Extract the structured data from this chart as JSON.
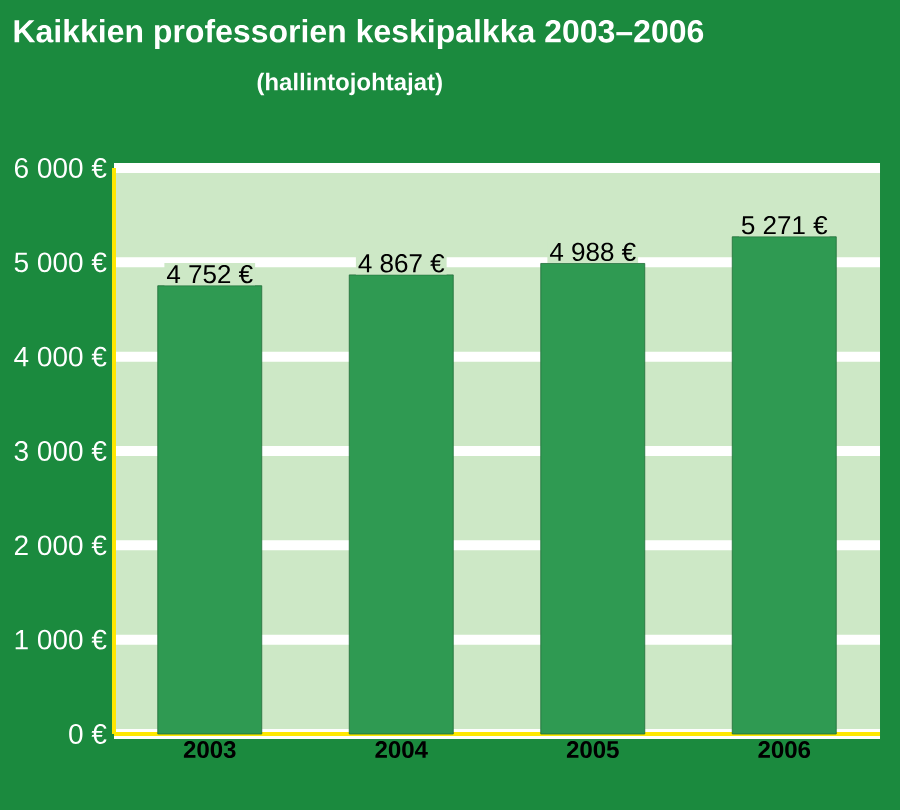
{
  "chart_data": {
    "type": "bar",
    "title": "Kaikkien professorien keskipalkka 2003–2006",
    "subtitle": "(hallintojohtajat)",
    "categories": [
      "2003",
      "2004",
      "2005",
      "2006"
    ],
    "values": [
      4752,
      4867,
      4988,
      5271
    ],
    "value_labels": [
      "4 752 €",
      "4 867 €",
      "4 988 €",
      "5 271 €"
    ],
    "color": "#2f9a52",
    "ylim": [
      0,
      6000
    ],
    "yticks": [
      {
        "value": 0,
        "label": "0 €"
      },
      {
        "value": 1000,
        "label": "1 000 €"
      },
      {
        "value": 2000,
        "label": "2 000 €"
      },
      {
        "value": 3000,
        "label": "3 000 €"
      },
      {
        "value": 4000,
        "label": "4 000 €"
      },
      {
        "value": 5000,
        "label": "5 000 €"
      },
      {
        "value": 6000,
        "label": "6 000 €"
      }
    ],
    "grid": "y"
  }
}
